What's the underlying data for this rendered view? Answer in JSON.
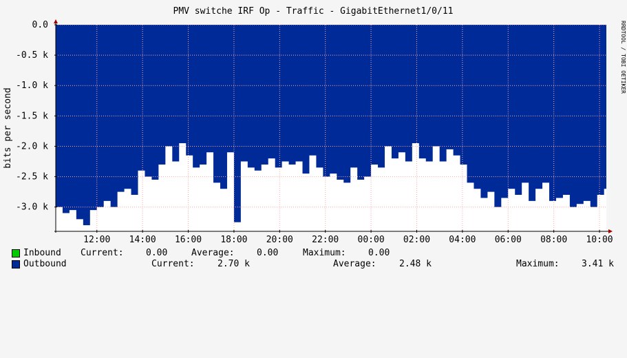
{
  "chart_data": {
    "type": "area",
    "title": "PMV switche IRF Op - Traffic - GigabitEthernet1/0/11",
    "ylabel": "bits per second",
    "watermark": "RRDTOOL / TOBI OETIKER",
    "ylim": [
      -3.4,
      0.0
    ],
    "y_ticks": [
      {
        "value": 0.0,
        "label": "0.0"
      },
      {
        "value": -0.5,
        "label": "-0.5 k"
      },
      {
        "value": -1.0,
        "label": "-1.0 k"
      },
      {
        "value": -1.5,
        "label": "-1.5 k"
      },
      {
        "value": -2.0,
        "label": "-2.0 k"
      },
      {
        "value": -2.5,
        "label": "-2.5 k"
      },
      {
        "value": -3.0,
        "label": "-3.0 k"
      }
    ],
    "x_ticks": [
      "12:00",
      "14:00",
      "16:00",
      "18:00",
      "20:00",
      "22:00",
      "00:00",
      "02:00",
      "04:00",
      "06:00",
      "08:00",
      "10:00"
    ],
    "x_tick_hours": [
      12,
      14,
      16,
      18,
      20,
      22,
      24,
      26,
      28,
      30,
      32,
      34
    ],
    "x_start_hour": 10.2,
    "x_end_hour": 34.3,
    "grid": true,
    "colors": {
      "outbound_fill": "#002a97",
      "inbound_fill": "#00cc00",
      "plot_background": "#ffffff",
      "grid": "#ffaaaa",
      "axis": "#000000",
      "arrow": "#a00000"
    },
    "series": [
      {
        "name": "Outbound",
        "unit": "k bits per second",
        "x_hours": [
          10.2,
          10.5,
          10.8,
          11.1,
          11.4,
          11.7,
          12.0,
          12.3,
          12.6,
          12.9,
          13.2,
          13.5,
          13.8,
          14.1,
          14.4,
          14.7,
          15.0,
          15.3,
          15.6,
          15.9,
          16.2,
          16.5,
          16.8,
          17.1,
          17.4,
          17.7,
          18.0,
          18.3,
          18.6,
          18.9,
          19.2,
          19.5,
          19.8,
          20.1,
          20.4,
          20.7,
          21.0,
          21.3,
          21.6,
          21.9,
          22.2,
          22.5,
          22.8,
          23.1,
          23.4,
          23.7,
          24.0,
          24.3,
          24.6,
          24.9,
          25.2,
          25.5,
          25.8,
          26.1,
          26.4,
          26.7,
          27.0,
          27.3,
          27.6,
          27.9,
          28.2,
          28.5,
          28.8,
          29.1,
          29.4,
          29.7,
          30.0,
          30.3,
          30.6,
          30.9,
          31.2,
          31.5,
          31.8,
          32.1,
          32.4,
          32.7,
          33.0,
          33.3,
          33.6,
          33.9,
          34.2
        ],
        "values": [
          -3.0,
          -3.1,
          -3.05,
          -3.2,
          -3.3,
          -3.05,
          -3.0,
          -2.9,
          -3.0,
          -2.75,
          -2.7,
          -2.8,
          -2.4,
          -2.5,
          -2.55,
          -2.3,
          -2.0,
          -2.25,
          -1.95,
          -2.15,
          -2.35,
          -2.3,
          -2.1,
          -2.6,
          -2.7,
          -2.1,
          -3.25,
          -2.25,
          -2.35,
          -2.4,
          -2.3,
          -2.2,
          -2.35,
          -2.25,
          -2.3,
          -2.25,
          -2.45,
          -2.15,
          -2.35,
          -2.5,
          -2.45,
          -2.55,
          -2.6,
          -2.35,
          -2.55,
          -2.5,
          -2.3,
          -2.35,
          -2.0,
          -2.2,
          -2.1,
          -2.25,
          -1.95,
          -2.2,
          -2.25,
          -2.0,
          -2.25,
          -2.05,
          -2.15,
          -2.3,
          -2.6,
          -2.7,
          -2.85,
          -2.75,
          -3.0,
          -2.85,
          -2.7,
          -2.8,
          -2.6,
          -2.9,
          -2.7,
          -2.6,
          -2.9,
          -2.85,
          -2.8,
          -3.0,
          -2.95,
          -2.9,
          -3.0,
          -2.8,
          -2.7
        ]
      }
    ]
  },
  "legend": {
    "inbound": {
      "label": "Inbound",
      "current_label": "Current:",
      "current_value": "0.00",
      "average_label": "Average:",
      "average_value": "0.00",
      "maximum_label": "Maximum:",
      "maximum_value": "0.00",
      "color": "#00cc00"
    },
    "outbound": {
      "label": "Outbound",
      "current_label": "Current:",
      "current_value": "2.70 k",
      "average_label": "Average:",
      "average_value": "2.48 k",
      "maximum_label": "Maximum:",
      "maximum_value": "3.41 k",
      "color": "#002a97"
    }
  }
}
